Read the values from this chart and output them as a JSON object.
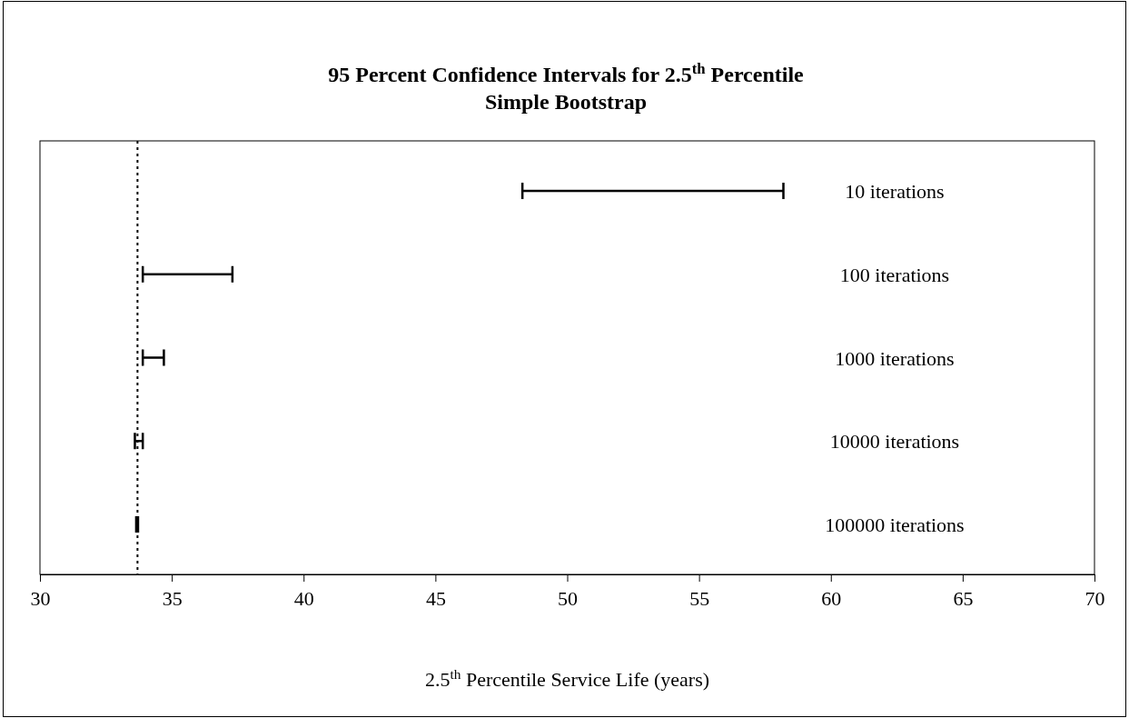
{
  "chart_data": {
    "type": "bar",
    "orientation": "horizontal",
    "title": "95 Percent Confidence Intervals for 2.5$^{th}$ Percentile",
    "subtitle": "Simple Bootstrap",
    "xlabel": "2.5$^{th}$ Percentile Service Life (years)",
    "categories": [
      "10 iterations",
      "100 iterations",
      "1000 iterations",
      "10000 iterations",
      "100000 iterations"
    ],
    "base": [
      48.3,
      33.9,
      33.9,
      33.6,
      33.65
    ],
    "values": [
      9.9,
      3.4,
      0.8,
      0.3,
      0.07
    ],
    "color": "#000000",
    "xlim": [
      30,
      70
    ],
    "xticks": [
      30,
      35,
      40,
      45,
      50,
      55,
      60,
      65,
      70
    ],
    "tick_labels": "x",
    "grid": false,
    "ref_lines": [
      {
        "axis": "x",
        "value": 33.7,
        "color": "#000000",
        "line_style": "dotted"
      }
    ]
  }
}
